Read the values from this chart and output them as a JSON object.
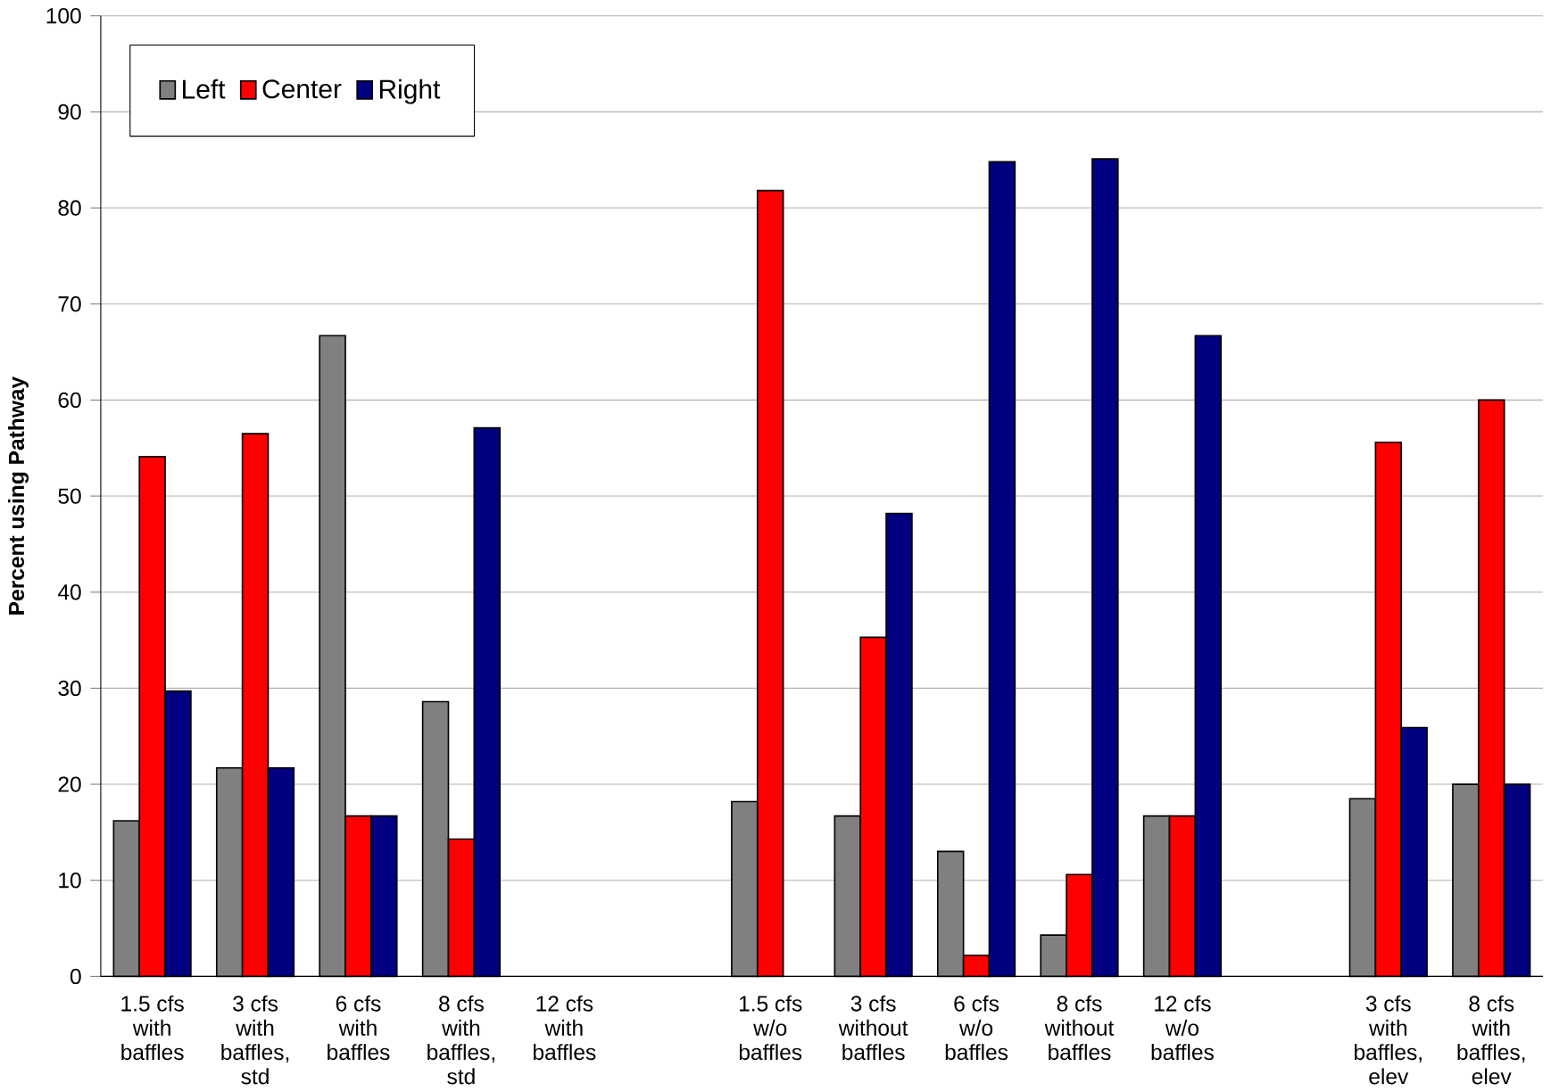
{
  "chart_data": {
    "type": "bar",
    "ylabel": "Percent using Pathway",
    "categories": [
      "1.5 cfs with baffles",
      "3 cfs with baffles, std",
      "6 cfs with baffles",
      "8 cfs with baffles, std",
      "12 cfs with baffles",
      null,
      "1.5 cfs w/o baffles",
      "3 cfs without baffles",
      "6 cfs w/o baffles",
      "8 cfs without baffles",
      "12 cfs w/o baffles",
      null,
      "3 cfs with baffles, elev",
      "8 cfs with baffles, elev"
    ],
    "series": [
      {
        "name": "Left",
        "color": "#808080",
        "values": [
          16.2,
          21.7,
          66.7,
          28.6,
          null,
          null,
          18.2,
          16.7,
          13.0,
          4.3,
          16.7,
          null,
          18.5,
          20.0
        ]
      },
      {
        "name": "Center",
        "color": "#ff0000",
        "values": [
          54.1,
          56.5,
          16.7,
          14.3,
          null,
          null,
          81.8,
          35.3,
          2.2,
          10.6,
          16.7,
          null,
          55.6,
          60.0
        ]
      },
      {
        "name": "Right",
        "color": "#000080",
        "values": [
          29.7,
          21.7,
          16.7,
          57.1,
          null,
          null,
          null,
          48.2,
          84.8,
          85.1,
          66.7,
          null,
          25.9,
          20.0
        ]
      }
    ],
    "ylim": [
      0,
      100
    ],
    "yticks": [
      0,
      10,
      20,
      30,
      40,
      50,
      60,
      70,
      80,
      90,
      100
    ],
    "grid": "y",
    "legend": "top left"
  }
}
